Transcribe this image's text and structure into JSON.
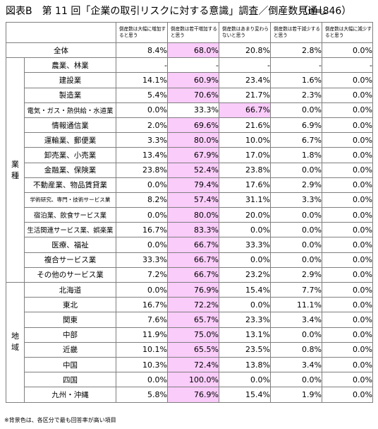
{
  "title": {
    "main": "図表B　第 11 回「企業の取引リスクに対する意識」調査／倒産数見通し",
    "n": "（n=846）"
  },
  "columns": [
    "倒産数は大幅に増加すると思う",
    "倒産数は若干増加すると思う",
    "倒産数はあまり変わらないと思う",
    "倒産数は若干減少すると思う",
    "倒産数は大幅に減少すると思う"
  ],
  "rows": [
    {
      "group": "",
      "label": "全体",
      "values": [
        "8.4%",
        "68.0%",
        "20.8%",
        "2.8%",
        "0.0%"
      ],
      "hi": [
        1
      ]
    },
    {
      "group": "業種",
      "label": "農業、林業",
      "values": [
        "-",
        "-",
        "-",
        "-",
        "-"
      ],
      "hi": []
    },
    {
      "group": "業種",
      "label": "建設業",
      "values": [
        "14.1%",
        "60.9%",
        "23.4%",
        "1.6%",
        "0.0%"
      ],
      "hi": [
        1
      ]
    },
    {
      "group": "業種",
      "label": "製造業",
      "values": [
        "5.4%",
        "70.6%",
        "21.7%",
        "2.3%",
        "0.0%"
      ],
      "hi": [
        1
      ]
    },
    {
      "group": "業種",
      "label": "電気・ガス・熱供給・水道業",
      "values": [
        "0.0%",
        "33.3%",
        "66.7%",
        "0.0%",
        "0.0%"
      ],
      "hi": [
        2
      ]
    },
    {
      "group": "業種",
      "label": "情報通信業",
      "values": [
        "2.0%",
        "69.6%",
        "21.6%",
        "6.9%",
        "0.0%"
      ],
      "hi": [
        1
      ]
    },
    {
      "group": "業種",
      "label": "運輸業、郵便業",
      "values": [
        "3.3%",
        "80.0%",
        "10.0%",
        "6.7%",
        "0.0%"
      ],
      "hi": [
        1
      ]
    },
    {
      "group": "業種",
      "label": "卸売業、小売業",
      "values": [
        "13.4%",
        "67.9%",
        "17.0%",
        "1.8%",
        "0.0%"
      ],
      "hi": [
        1
      ]
    },
    {
      "group": "業種",
      "label": "金融業、保険業",
      "values": [
        "23.8%",
        "52.4%",
        "23.8%",
        "0.0%",
        "0.0%"
      ],
      "hi": [
        1
      ]
    },
    {
      "group": "業種",
      "label": "不動産業、物品賃貸業",
      "values": [
        "0.0%",
        "79.4%",
        "17.6%",
        "2.9%",
        "0.0%"
      ],
      "hi": [
        1
      ]
    },
    {
      "group": "業種",
      "label": "学術研究、専門・技術サービス業",
      "values": [
        "8.2%",
        "57.4%",
        "31.1%",
        "3.3%",
        "0.0%"
      ],
      "hi": [
        1
      ]
    },
    {
      "group": "業種",
      "label": "宿泊業、飲食サービス業",
      "values": [
        "0.0%",
        "80.0%",
        "20.0%",
        "0.0%",
        "0.0%"
      ],
      "hi": [
        1
      ]
    },
    {
      "group": "業種",
      "label": "生活関連サービス業、娯楽業",
      "values": [
        "16.7%",
        "83.3%",
        "0.0%",
        "0.0%",
        "0.0%"
      ],
      "hi": [
        1
      ]
    },
    {
      "group": "業種",
      "label": "医療、福祉",
      "values": [
        "0.0%",
        "66.7%",
        "33.3%",
        "0.0%",
        "0.0%"
      ],
      "hi": [
        1
      ]
    },
    {
      "group": "業種",
      "label": "複合サービス業",
      "values": [
        "33.3%",
        "66.7%",
        "0.0%",
        "0.0%",
        "0.0%"
      ],
      "hi": [
        1
      ]
    },
    {
      "group": "業種",
      "label": "その他のサービス業",
      "values": [
        "7.2%",
        "66.7%",
        "23.2%",
        "2.9%",
        "0.0%"
      ],
      "hi": [
        1
      ]
    },
    {
      "group": "地域",
      "label": "北海道",
      "values": [
        "0.0%",
        "76.9%",
        "15.4%",
        "7.7%",
        "0.0%"
      ],
      "hi": [
        1
      ]
    },
    {
      "group": "地域",
      "label": "東北",
      "values": [
        "16.7%",
        "72.2%",
        "0.0%",
        "11.1%",
        "0.0%"
      ],
      "hi": [
        1
      ]
    },
    {
      "group": "地域",
      "label": "関東",
      "values": [
        "7.6%",
        "65.7%",
        "23.3%",
        "3.4%",
        "0.0%"
      ],
      "hi": [
        1
      ]
    },
    {
      "group": "地域",
      "label": "中部",
      "values": [
        "11.9%",
        "75.0%",
        "13.1%",
        "0.0%",
        "0.0%"
      ],
      "hi": [
        1
      ]
    },
    {
      "group": "地域",
      "label": "近畿",
      "values": [
        "10.1%",
        "65.5%",
        "23.5%",
        "0.8%",
        "0.0%"
      ],
      "hi": [
        1
      ]
    },
    {
      "group": "地域",
      "label": "中国",
      "values": [
        "10.3%",
        "72.4%",
        "13.8%",
        "3.4%",
        "0.0%"
      ],
      "hi": [
        1
      ]
    },
    {
      "group": "地域",
      "label": "四国",
      "values": [
        "0.0%",
        "100.0%",
        "0.0%",
        "0.0%",
        "0.0%"
      ],
      "hi": [
        1
      ]
    },
    {
      "group": "地域",
      "label": "九州・沖縄",
      "values": [
        "5.8%",
        "76.9%",
        "15.4%",
        "1.9%",
        "0.0%"
      ],
      "hi": [
        1
      ]
    }
  ],
  "highlight_color": "#f9ccf9",
  "footnote": "※背景色は、各区分で最も回答率が高い項目"
}
